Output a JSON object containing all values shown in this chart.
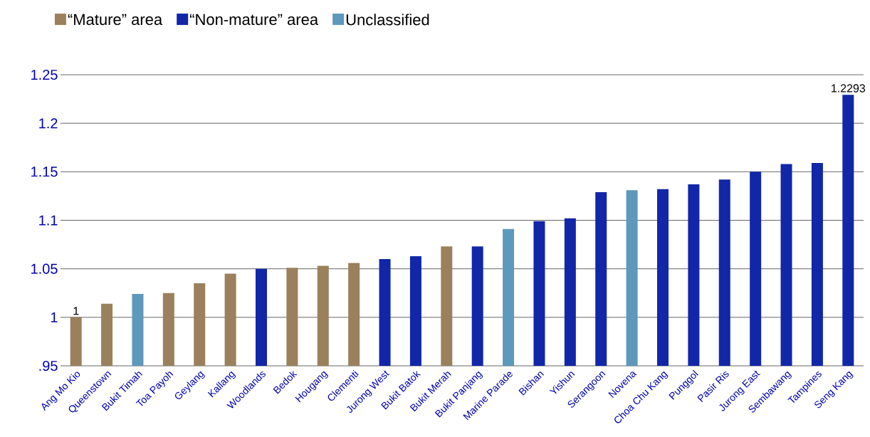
{
  "chart_data": {
    "type": "bar",
    "categories": [
      "Ang Mo Kio",
      "Queenstown",
      "Bukit Timah",
      "Toa Payoh",
      "Geylang",
      "Kallang",
      "Woodlands",
      "Bedok",
      "Hougang",
      "Clementi",
      "Jurong West",
      "Bukit Batok",
      "Bukit Merah",
      "Bukit Panjang",
      "Marine Parade",
      "Bishan",
      "Yishun",
      "Serangoon",
      "Novena",
      "Choa Chu Kang",
      "Punggol",
      "Pasir Ris",
      "Jurong East",
      "Sembawang",
      "Tampines",
      "Seng Kang"
    ],
    "series": [
      {
        "name": "“Mature” area",
        "color": "#9a805c",
        "values": [
          1,
          1.014,
          null,
          1.025,
          1.035,
          1.045,
          null,
          1.051,
          1.053,
          1.056,
          null,
          null,
          1.073,
          null,
          null,
          null,
          null,
          null,
          null,
          null,
          null,
          null,
          null,
          null,
          null,
          null
        ],
        "value_labels": [
          "1",
          null,
          null,
          null,
          null,
          null,
          null,
          null,
          null,
          null,
          null,
          null,
          null,
          null,
          null,
          null,
          null,
          null,
          null,
          null,
          null,
          null,
          null,
          null,
          null,
          null
        ]
      },
      {
        "name": "“Non-mature” area",
        "color": "#1226a8",
        "values": [
          null,
          null,
          null,
          null,
          null,
          null,
          1.05,
          null,
          null,
          null,
          1.06,
          1.063,
          null,
          1.073,
          null,
          1.099,
          1.102,
          1.129,
          null,
          1.132,
          1.137,
          1.142,
          1.15,
          1.158,
          1.159,
          1.2293
        ],
        "value_labels": [
          null,
          null,
          null,
          null,
          null,
          null,
          null,
          null,
          null,
          null,
          null,
          null,
          null,
          null,
          null,
          null,
          null,
          null,
          null,
          null,
          null,
          null,
          null,
          null,
          null,
          "1.2293"
        ]
      },
      {
        "name": "Unclassified",
        "color": "#5e98bb",
        "values": [
          null,
          null,
          1.024,
          null,
          null,
          null,
          null,
          null,
          null,
          null,
          null,
          null,
          null,
          null,
          1.091,
          null,
          null,
          null,
          1.131,
          null,
          null,
          null,
          null,
          null,
          null,
          null
        ]
      }
    ],
    "ylim": [
      0.95,
      1.25
    ],
    "yticks": [
      {
        "value": 0.95,
        "label": ".95"
      },
      1,
      1.05,
      1.1,
      1.15,
      1.2,
      1.25
    ],
    "grid": "y",
    "legend": "top left"
  }
}
